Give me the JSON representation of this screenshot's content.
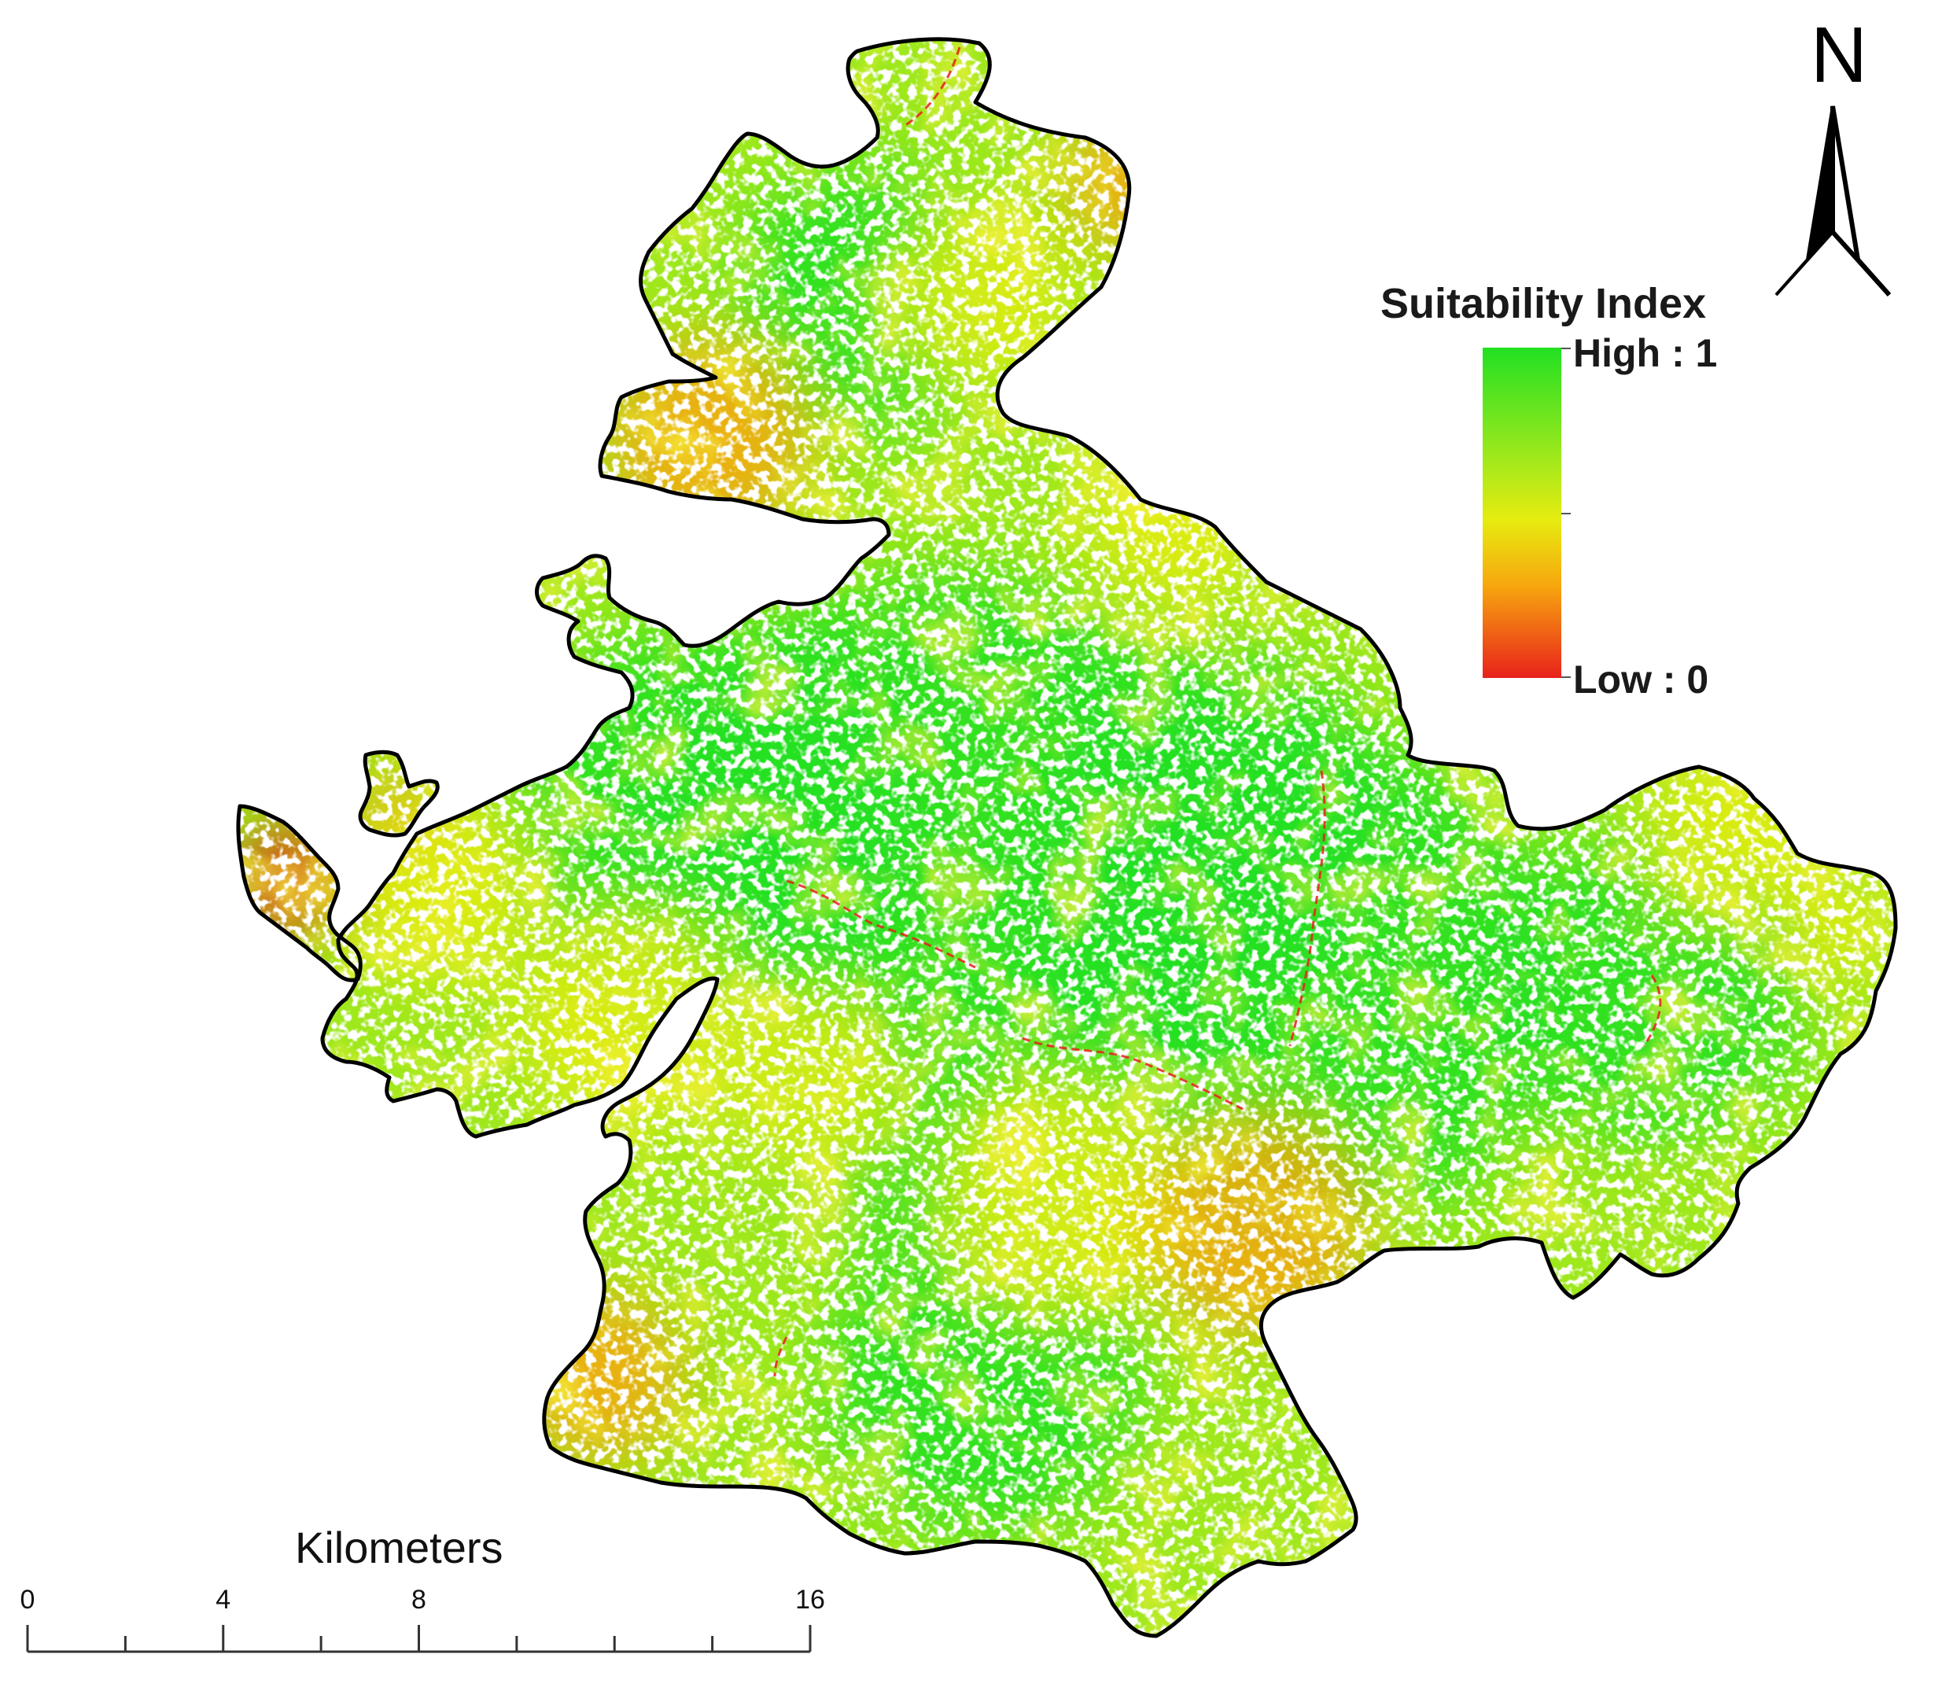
{
  "map": {
    "north_arrow": {
      "label": "N",
      "icon": "north-arrow-icon"
    },
    "legend": {
      "title": "Suitability Index",
      "high_label": "High : 1",
      "low_label": "Low : 0",
      "colors": {
        "high": "#22e022",
        "mid1": "#9ee81c",
        "mid2": "#e6ec10",
        "mid3": "#f7a70e",
        "low": "#e8211b"
      }
    },
    "scale_bar": {
      "unit": "Kilometers",
      "labels": [
        "0",
        "4",
        "8",
        "16"
      ],
      "values": [
        0,
        4,
        8,
        16
      ]
    },
    "boundary_color": "#000000"
  }
}
